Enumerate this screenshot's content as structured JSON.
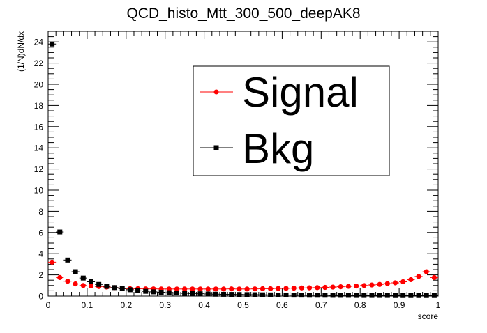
{
  "chart_data": {
    "type": "scatter",
    "title": "QCD_histo_Mtt_300_500_deepAK8",
    "xlabel": "score",
    "ylabel": "(1/N)dN/dx",
    "xlim": [
      0,
      1
    ],
    "ylim": [
      0,
      25
    ],
    "x_ticks": [
      "0",
      "0.1",
      "0.2",
      "0.3",
      "0.4",
      "0.5",
      "0.6",
      "0.7",
      "0.8",
      "0.9",
      "1"
    ],
    "y_ticks": [
      "0",
      "2",
      "4",
      "6",
      "8",
      "10",
      "12",
      "14",
      "16",
      "18",
      "20",
      "22",
      "24"
    ],
    "legend_position": "top-right",
    "grid": false,
    "x": [
      0.01,
      0.03,
      0.05,
      0.07,
      0.09,
      0.11,
      0.13,
      0.15,
      0.17,
      0.19,
      0.21,
      0.23,
      0.25,
      0.27,
      0.29,
      0.31,
      0.33,
      0.35,
      0.37,
      0.39,
      0.41,
      0.43,
      0.45,
      0.47,
      0.49,
      0.51,
      0.53,
      0.55,
      0.57,
      0.59,
      0.61,
      0.63,
      0.65,
      0.67,
      0.69,
      0.71,
      0.73,
      0.75,
      0.77,
      0.79,
      0.81,
      0.83,
      0.85,
      0.87,
      0.89,
      0.91,
      0.93,
      0.95,
      0.97,
      0.99
    ],
    "series": [
      {
        "name": "Signal",
        "color": "#ff0000",
        "marker": "circle",
        "values": [
          3.2,
          1.75,
          1.4,
          1.15,
          1.0,
          0.95,
          0.9,
          0.85,
          0.8,
          0.75,
          0.7,
          0.7,
          0.68,
          0.68,
          0.67,
          0.67,
          0.67,
          0.67,
          0.67,
          0.67,
          0.67,
          0.67,
          0.67,
          0.68,
          0.67,
          0.67,
          0.68,
          0.7,
          0.7,
          0.72,
          0.73,
          0.75,
          0.77,
          0.78,
          0.8,
          0.82,
          0.85,
          0.88,
          0.92,
          0.95,
          1.0,
          1.05,
          1.1,
          1.18,
          1.25,
          1.35,
          1.55,
          1.85,
          2.3,
          1.75
        ]
      },
      {
        "name": "Bkg",
        "color": "#000000",
        "marker": "square",
        "values": [
          23.8,
          6.05,
          3.4,
          2.3,
          1.7,
          1.35,
          1.1,
          0.92,
          0.8,
          0.7,
          0.6,
          0.5,
          0.45,
          0.4,
          0.36,
          0.32,
          0.29,
          0.26,
          0.24,
          0.22,
          0.2,
          0.18,
          0.17,
          0.16,
          0.15,
          0.14,
          0.13,
          0.12,
          0.11,
          0.1,
          0.1,
          0.09,
          0.09,
          0.08,
          0.08,
          0.08,
          0.07,
          0.07,
          0.07,
          0.06,
          0.06,
          0.06,
          0.06,
          0.06,
          0.05,
          0.05,
          0.05,
          0.05,
          0.05,
          0.05
        ]
      }
    ]
  }
}
